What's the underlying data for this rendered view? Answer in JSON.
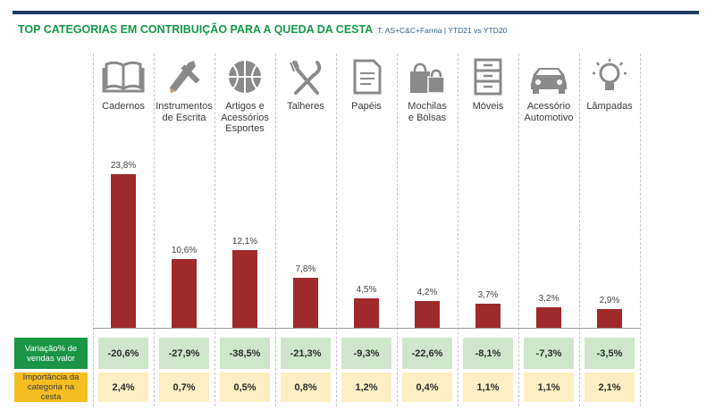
{
  "header": {
    "title": "TOP CATEGORIAS EM CONTRIBUIÇÃO PARA A QUEDA DA CESTA",
    "subtitle": "T. AS+C&C+Farma | YTD21 vs YTD20"
  },
  "colors": {
    "bar": "#9e2a2b",
    "title": "#159947",
    "row1_label_bg": "#1a9445",
    "row2_label_bg": "#f5bd22"
  },
  "chart_data": {
    "type": "bar",
    "title": "TOP CATEGORIAS EM CONTRIBUIÇÃO PARA A QUEDA DA CESTA",
    "categories": [
      "Cadernos",
      "Instrumentos de Escrita",
      "Artigos e Acessórios Esportes",
      "Talheres",
      "Papéis",
      "Mochilas e Bolsas",
      "Móveis",
      "Acessório Automotivo",
      "Lâmpadas"
    ],
    "category_lines": [
      [
        "Cadernos"
      ],
      [
        "Instrumentos",
        "de Escrita"
      ],
      [
        "Artigos e",
        "Acessórios",
        "Esportes"
      ],
      [
        "Talheres"
      ],
      [
        "Papéis"
      ],
      [
        "Mochilas",
        "e Bolsas"
      ],
      [
        "Móveis"
      ],
      [
        "Acessório",
        "Automotivo"
      ],
      [
        "Lâmpadas"
      ]
    ],
    "icons": [
      "notebook-icon",
      "pencil-ruler-icon",
      "basketball-icon",
      "cutlery-icon",
      "paper-icon",
      "bags-icon",
      "drawers-icon",
      "car-icon",
      "lightbulb-icon"
    ],
    "values": [
      23.8,
      10.6,
      12.1,
      7.8,
      4.5,
      4.2,
      3.7,
      3.2,
      2.9
    ],
    "value_labels": [
      "23,8%",
      "10,6%",
      "12,1%",
      "7,8%",
      "4,5%",
      "4,2%",
      "3,7%",
      "3,2%",
      "2,9%"
    ],
    "ylim": [
      0,
      26
    ],
    "grid": false,
    "legend": "none"
  },
  "table": {
    "rows": [
      {
        "label": "Variação% de vendas valor",
        "values": [
          "-20,6%",
          "-27,9%",
          "-38,5%",
          "-21,3%",
          "-9,3%",
          "-22,6%",
          "-8,1%",
          "-7,3%",
          "-3,5%"
        ]
      },
      {
        "label": "Importância da categoria na cesta",
        "values": [
          "2,4%",
          "0,7%",
          "0,5%",
          "0,8%",
          "1,2%",
          "0,4%",
          "1,1%",
          "1,1%",
          "2,1%"
        ]
      }
    ]
  }
}
